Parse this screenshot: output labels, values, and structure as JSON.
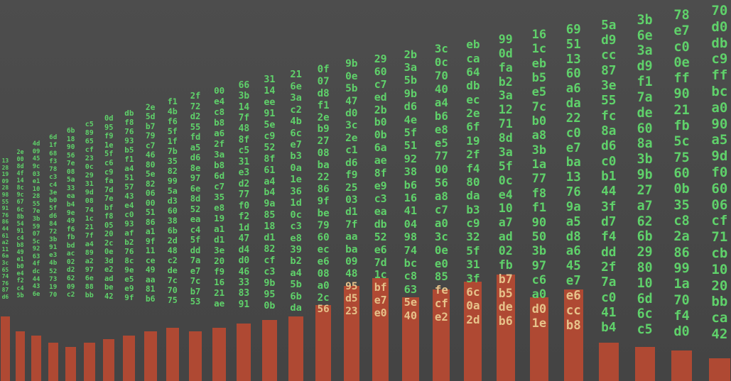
{
  "colors": {
    "background": "#4a4a4a",
    "hex_text": "#5fd16a",
    "hex_text_on_bar": "#e6c28a",
    "bar": "#b84a32"
  },
  "columns": [
    {
      "cells": [
        "13",
        "28",
        "19",
        "09",
        "28",
        "98",
        "55",
        "91",
        "76",
        "86",
        "44",
        "61",
        "a2",
        "11",
        "6a",
        "3c",
        "65",
        "74",
        "76",
        "87",
        "d6"
      ],
      "level": 0.17
    },
    {
      "cells": [
        "2e",
        "00",
        "8d",
        "4f",
        "14",
        "8c",
        "9c",
        "67",
        "6c",
        "8b",
        "54",
        "91",
        "c4",
        "b8",
        "49",
        "e1",
        "b0",
        "e4",
        "f2",
        "c4",
        "5b"
      ],
      "level": 0.13
    },
    {
      "cells": [
        "4d",
        "09",
        "45",
        "9c",
        "03",
        "e1",
        "10",
        "28",
        "55",
        "7e",
        "3b",
        "59",
        "07",
        "5c",
        "92",
        "63",
        "4f",
        "dc",
        "44",
        "43",
        "6e"
      ],
      "level": 0.12
    },
    {
      "cells": [
        "6d",
        "1f",
        "68",
        "f3",
        "78",
        "c3",
        "c4",
        "3e",
        "b0",
        "5f",
        "d6",
        "84",
        "72",
        "3b",
        "91",
        "e3",
        "4b",
        "52",
        "73",
        "19",
        "70"
      ],
      "level": 0.1
    },
    {
      "cells": [
        "6b",
        "18",
        "90",
        "56",
        "7e",
        "08",
        "5a",
        "33",
        "ea",
        "b4",
        "9e",
        "49",
        "f6",
        "fb",
        "bd",
        "ac",
        "02",
        "d2",
        "62",
        "09",
        "c2"
      ],
      "level": 0.09
    },
    {
      "cells": [
        "c5",
        "89",
        "65",
        "cf",
        "23",
        "0c",
        "29",
        "31",
        "9d",
        "08",
        "74",
        "1c",
        "21",
        "7f",
        "a4",
        "89",
        "a2",
        "97",
        "6e",
        "88",
        "bb"
      ],
      "level": 0.1
    },
    {
      "cells": [
        "0d",
        "95",
        "f9",
        "1e",
        "5f",
        "c6",
        "c9",
        "fa",
        "7d",
        "7e",
        "bf",
        "f8",
        "05",
        "20",
        "2c",
        "0e",
        "3d",
        "e2",
        "ad",
        "be",
        "42"
      ],
      "level": 0.11
    },
    {
      "cells": [
        "db",
        "f8",
        "76",
        "93",
        "b5",
        "f1",
        "a4",
        "51",
        "57",
        "43",
        "e4",
        "c0",
        "93",
        "af",
        "b2",
        "76",
        "8c",
        "9e",
        "e5",
        "e9",
        "9f"
      ],
      "level": 0.12
    },
    {
      "cells": [
        "2e",
        "5d",
        "b7",
        "79",
        "c7",
        "46",
        "80",
        "5e",
        "82",
        "06",
        "00",
        "51",
        "86",
        "a1",
        "9f",
        "11",
        "ce",
        "49",
        "aa",
        "81",
        "b6"
      ],
      "level": 0.13
    },
    {
      "cells": [
        "f1",
        "4b",
        "f6",
        "5f",
        "1f",
        "7b",
        "35",
        "82",
        "99",
        "5a",
        "d3",
        "60",
        "38",
        "6b",
        "2d",
        "48",
        "c2",
        "de",
        "7c",
        "70",
        "75"
      ],
      "level": 0.14
    },
    {
      "cells": [
        "2f",
        "72",
        "d2",
        "55",
        "fd",
        "a5",
        "d6",
        "8e",
        "97",
        "6e",
        "8d",
        "52",
        "ea",
        "c4",
        "5f",
        "dd",
        "7a",
        "e7",
        "7c",
        "b7",
        "53"
      ],
      "level": 0.13
    },
    {
      "cells": [
        "00",
        "e4",
        "c8",
        "b8",
        "a6",
        "2f",
        "3a",
        "b8",
        "6d",
        "c7",
        "35",
        "e8",
        "19",
        "a1",
        "d1",
        "3e",
        "20",
        "f9",
        "16",
        "21",
        "ae"
      ],
      "level": 0.14
    },
    {
      "cells": [
        "66",
        "3b",
        "14",
        "7f",
        "48",
        "8f",
        "c5",
        "31",
        "e3",
        "d2",
        "77",
        "f0",
        "f2",
        "1d",
        "47",
        "d4",
        "d0",
        "46",
        "33",
        "83",
        "91"
      ],
      "level": 0.15
    },
    {
      "cells": [
        "31",
        "14",
        "ee",
        "91",
        "5e",
        "c9",
        "52",
        "8f",
        "61",
        "a4",
        "b4",
        "9a",
        "85",
        "18",
        "d1",
        "82",
        "cf",
        "c3",
        "9b",
        "95",
        "0b"
      ],
      "level": 0.16
    },
    {
      "cells": [
        "21",
        "6e",
        "3a",
        "c2",
        "4b",
        "6c",
        "e7",
        "b3",
        "0a",
        "1e",
        "36",
        "1d",
        "0c",
        "c3",
        "e8",
        "39",
        "b2",
        "a4",
        "5b",
        "6b",
        "da"
      ],
      "level": 0.17
    },
    {
      "cells": [
        "0f",
        "07",
        "d8",
        "f1",
        "2e",
        "b9",
        "27",
        "08",
        "ba",
        "22",
        "86",
        "9f",
        "be",
        "79",
        "60",
        "ec",
        "e6",
        "08",
        "a0",
        "2c",
        "56"
      ],
      "level": 0.2
    },
    {
      "cells": [
        "9b",
        "0e",
        "5b",
        "47",
        "d0",
        "3c",
        "2e",
        "c1",
        "d6",
        "f9",
        "25",
        "03",
        "d1",
        "7f",
        "aa",
        "ba",
        "09",
        "48",
        "95",
        "d5",
        "23"
      ],
      "level": 0.25
    },
    {
      "cells": [
        "29",
        "60",
        "c7",
        "ed",
        "2b",
        "b0",
        "0b",
        "6a",
        "ae",
        "8f",
        "e9",
        "c3",
        "ea",
        "db",
        "52",
        "e6",
        "7d",
        "1c",
        "bf",
        "e7",
        "e0"
      ],
      "level": 0.27
    },
    {
      "cells": [
        "2b",
        "3a",
        "5b",
        "9b",
        "d6",
        "4e",
        "5f",
        "51",
        "92",
        "38",
        "b6",
        "16",
        "41",
        "04",
        "98",
        "74",
        "bc",
        "c8",
        "63",
        "5e",
        "40"
      ],
      "level": 0.22
    },
    {
      "cells": [
        "3c",
        "0c",
        "70",
        "40",
        "a4",
        "b6",
        "e8",
        "e5",
        "77",
        "00",
        "56",
        "a8",
        "c7",
        "a0",
        "3c",
        "0e",
        "e0",
        "85",
        "fe",
        "cf",
        "e2"
      ],
      "level": 0.24
    },
    {
      "cells": [
        "eb",
        "ca",
        "64",
        "db",
        "ec",
        "2e",
        "6f",
        "19",
        "2f",
        "f4",
        "80",
        "da",
        "b3",
        "c9",
        "32",
        "5f",
        "31",
        "3f",
        "6c",
        "0a",
        "2d"
      ],
      "level": 0.26
    },
    {
      "cells": [
        "99",
        "0d",
        "fa",
        "b2",
        "3a",
        "12",
        "71",
        "8d",
        "3a",
        "5f",
        "0c",
        "e4",
        "10",
        "a7",
        "ad",
        "02",
        "fb",
        "b7",
        "b5",
        "de",
        "b6"
      ],
      "level": 0.28
    },
    {
      "cells": [
        "16",
        "1c",
        "eb",
        "b5",
        "e5",
        "7c",
        "b0",
        "a8",
        "3b",
        "1a",
        "77",
        "f8",
        "f1",
        "90",
        "50",
        "3b",
        "97",
        "c6",
        "a0",
        "d0",
        "1e"
      ],
      "level": 0.22
    },
    {
      "cells": [
        "69",
        "51",
        "13",
        "60",
        "a6",
        "da",
        "22",
        "c0",
        "e7",
        "ba",
        "13",
        "76",
        "9a",
        "a5",
        "d8",
        "a6",
        "45",
        "e7",
        "e6",
        "cc",
        "b8"
      ],
      "level": 0.24
    },
    {
      "cells": [
        "5a",
        "d9",
        "cc",
        "87",
        "3e",
        "55",
        "fc",
        "8a",
        "d6",
        "c0",
        "b1",
        "44",
        "3f",
        "d7",
        "f4",
        "dd",
        "2f",
        "7a",
        "c0",
        "41",
        "b4"
      ],
      "level": 0.1
    },
    {
      "cells": [
        "3b",
        "6e",
        "3a",
        "d9",
        "f1",
        "7a",
        "de",
        "60",
        "8a",
        "3b",
        "9b",
        "27",
        "a7",
        "62",
        "6b",
        "29",
        "80",
        "10",
        "6d",
        "6c",
        "c5"
      ],
      "level": 0.09
    },
    {
      "cells": [
        "78",
        "e7",
        "c0",
        "0e",
        "ff",
        "90",
        "21",
        "fb",
        "5c",
        "75",
        "60",
        "0b",
        "35",
        "c8",
        "2a",
        "86",
        "99",
        "1a",
        "70",
        "f4",
        "d0"
      ],
      "level": 0.08
    },
    {
      "cells": [
        "70",
        "d0",
        "db",
        "c9",
        "ff",
        "bc",
        "a0",
        "90",
        "a5",
        "9d",
        "f0",
        "60",
        "06",
        "cf",
        "71",
        "cb",
        "10",
        "20",
        "bb",
        "ca",
        "42"
      ],
      "level": 0.06
    }
  ]
}
